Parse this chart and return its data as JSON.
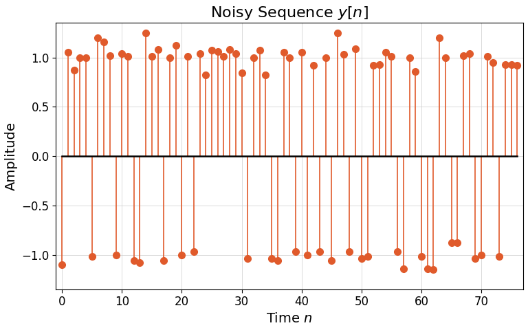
{
  "title": "Noisy Sequence $y[n]$",
  "xlabel": "Time $n$",
  "ylabel": "Amplitude",
  "color": "#E05A2B",
  "background": "#ffffff",
  "ylim": [
    -1.35,
    1.35
  ],
  "xlim": [
    -1,
    77
  ],
  "y_values": [
    -1.1,
    1.05,
    0.87,
    1.0,
    1.0,
    -1.02,
    1.2,
    1.16,
    1.02,
    -1.0,
    1.04,
    1.01,
    -1.06,
    -1.08,
    1.25,
    1.01,
    1.08,
    -1.06,
    1.0,
    1.12,
    -1.0,
    1.01,
    -0.97,
    1.04,
    0.82,
    1.07,
    1.06,
    1.01,
    1.08,
    1.04,
    0.84,
    -1.04,
    1.0,
    1.07,
    0.82,
    -1.04,
    -1.06,
    1.05,
    1.0,
    -0.97,
    1.05,
    -1.0,
    0.92,
    -0.97,
    1.0,
    -1.06,
    1.25,
    1.03,
    -0.97,
    1.09,
    -1.04,
    -1.02,
    0.92,
    0.93,
    1.05,
    1.01,
    -0.97,
    -1.14,
    1.0,
    0.86,
    -1.02,
    -1.14,
    -1.15,
    1.2,
    1.0,
    -0.88,
    -0.88,
    1.02,
    1.04,
    -1.04,
    -1.0,
    1.01,
    0.95,
    -1.02,
    0.93,
    0.93,
    0.92
  ],
  "figsize": [
    7.68,
    4.8
  ],
  "dpi": 100,
  "title_fontsize": 16,
  "axis_label_fontsize": 14,
  "tick_fontsize": 12,
  "markersize": 7,
  "linewidth": 1.2,
  "baseline_linewidth": 1.8
}
